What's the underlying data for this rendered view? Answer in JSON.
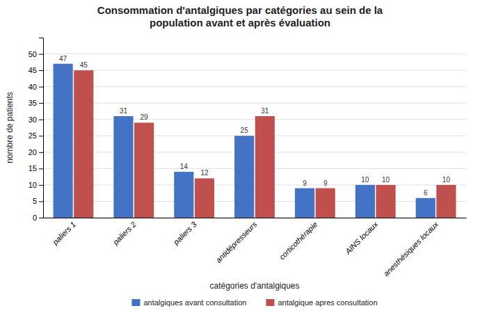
{
  "chart_data": {
    "type": "bar",
    "title": "Consommation d'antalgiques par catégories au sein de la\npopulation avant et après évaluation",
    "xlabel": "catégories d'antalgiques",
    "ylabel": "nombre de patients",
    "categories": [
      "paliers 1",
      "paliers 2",
      "paliers 3",
      "antidépresseurs",
      "corticothérapie",
      "AINS locaux",
      "anesthésiques locaux"
    ],
    "series": [
      {
        "name": "antalgiques avant consultation",
        "color": "#4472C4",
        "values": [
          47,
          31,
          14,
          25,
          9,
          10,
          6
        ]
      },
      {
        "name": "antalgique apres consultation",
        "color": "#C0504D",
        "values": [
          45,
          29,
          12,
          31,
          9,
          10,
          10
        ]
      }
    ],
    "ylim": [
      0,
      55
    ],
    "yticks": [
      0,
      5,
      10,
      15,
      20,
      25,
      30,
      35,
      40,
      45,
      50
    ],
    "grid": true,
    "data_labels": true,
    "legend": "bottom"
  }
}
